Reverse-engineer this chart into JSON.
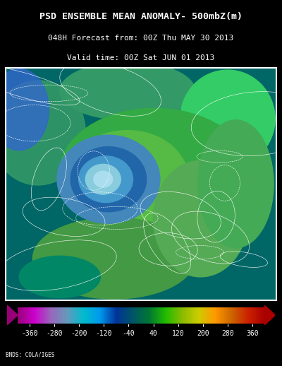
{
  "title_line1": "PSD ENSEMBLE MEAN ANOMALY- 500mbZ(m)",
  "title_line2": "048H Forecast from: 00Z Thu MAY 30 2013",
  "title_line3": "Valid time: 00Z Sat JUN 01 2013",
  "colorbar_ticks": [
    -360,
    -280,
    -200,
    -120,
    -40,
    40,
    120,
    200,
    280,
    360
  ],
  "colorbar_colors": [
    "#990077",
    "#CC00CC",
    "#9966BB",
    "#6699BB",
    "#00BBCC",
    "#0099EE",
    "#003399",
    "#005566",
    "#007733",
    "#22BB00",
    "#88BB00",
    "#CCCC00",
    "#FF9900",
    "#CC6600",
    "#CC2200",
    "#AA0000",
    "#880000",
    "#660000"
  ],
  "colorbar_boundaries": [
    -400,
    -360,
    -280,
    -200,
    -120,
    -40,
    0,
    40,
    120,
    200,
    280,
    360,
    400
  ],
  "background_color": "#000000",
  "text_color": "#ffffff",
  "credit_text": "BNDS: COLA/IGES",
  "map_bg_color": "#006666",
  "figure_width": 4.0,
  "figure_height": 5.18
}
